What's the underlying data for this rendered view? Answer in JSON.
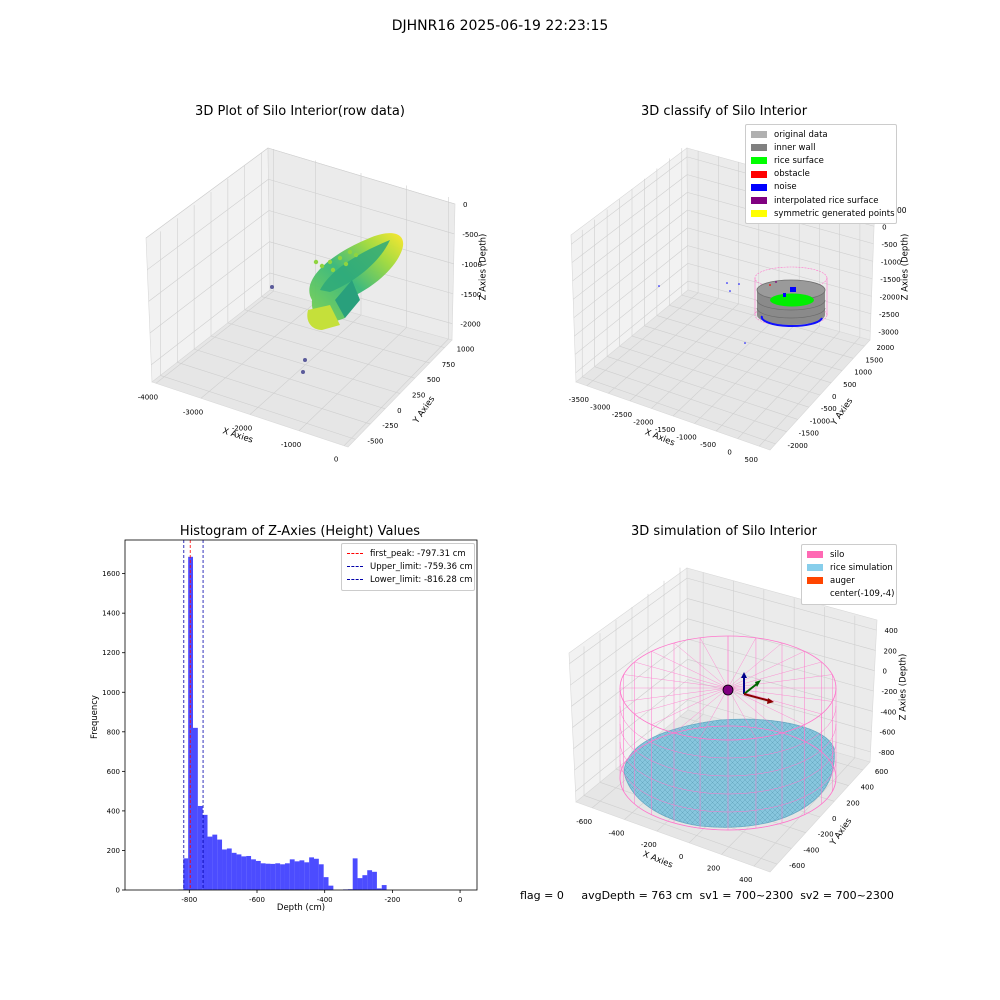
{
  "figure": {
    "title": "DJHNR16 2025-06-19 22:23:15",
    "status_line": "flag = 0     avgDepth = 763 cm  sv1 = 700~2300  sv2 = 700~2300"
  },
  "chart_data": [
    {
      "id": "raw",
      "type": "scatter",
      "title": "3D Plot of Silo Interior(row data)",
      "xlabel": "X Axies",
      "ylabel": "Y Axies",
      "zlabel": "Z Axies (Depth)",
      "x_ticks": [
        "-4000",
        "-3000",
        "-2000",
        "-1000",
        "0"
      ],
      "y_ticks": [
        "-500",
        "-250",
        "0",
        "250",
        "500",
        "750",
        "1000"
      ],
      "z_ticks": [
        "0",
        "-500",
        "-1000",
        "-1500",
        "-2000"
      ],
      "colormap": [
        "#440154",
        "#31688e",
        "#35b779",
        "#fde725"
      ],
      "isolated_points_color": "#5b5b9a"
    },
    {
      "id": "classify",
      "type": "scatter",
      "title": "3D classify of Silo Interior",
      "xlabel": "X Axies",
      "ylabel": "Y Axies",
      "zlabel": "Z Axies (Depth)",
      "x_ticks": [
        "-3500",
        "-3000",
        "-2500",
        "-2000",
        "-1500",
        "-1000",
        "-500",
        "0",
        "500"
      ],
      "y_ticks": [
        "-2000",
        "-1500",
        "-1000",
        "-500",
        "0",
        "500",
        "1000",
        "1500",
        "2000"
      ],
      "z_ticks": [
        "500",
        "0",
        "-500",
        "-1000",
        "-1500",
        "-2000",
        "-2500",
        "-3000"
      ],
      "z_top_tick_partial": "00",
      "legend": [
        {
          "label": "original data",
          "color": "#b0b0b0"
        },
        {
          "label": "inner wall",
          "color": "#808080"
        },
        {
          "label": "rice surface",
          "color": "#00ff00"
        },
        {
          "label": "obstacle",
          "color": "#ff0000"
        },
        {
          "label": "noise",
          "color": "#0000ff"
        },
        {
          "label": "interpolated rice surface",
          "color": "#800080"
        },
        {
          "label": "symmetric generated points",
          "color": "#ffff00"
        }
      ],
      "wire_color": "#ff77cc"
    },
    {
      "id": "histogram",
      "type": "bar",
      "title": "Histogram of Z-Axies (Height) Values",
      "xlabel": "Depth (cm)",
      "ylabel": "Frequency",
      "xlim": [
        -990,
        50
      ],
      "ylim": [
        0,
        1770
      ],
      "x_ticks": [
        -800,
        -600,
        -400,
        -200,
        0
      ],
      "y_ticks": [
        0,
        200,
        400,
        600,
        800,
        1000,
        1200,
        1400,
        1600
      ],
      "bar_color": "#0000ff",
      "bin_width": 14.3,
      "bins": [
        {
          "x": -832,
          "v": 2
        },
        {
          "x": -817.7,
          "v": 160
        },
        {
          "x": -803.4,
          "v": 1685
        },
        {
          "x": -789.1,
          "v": 820
        },
        {
          "x": -774.8,
          "v": 425
        },
        {
          "x": -760.5,
          "v": 380
        },
        {
          "x": -746.2,
          "v": 270
        },
        {
          "x": -731.9,
          "v": 280
        },
        {
          "x": -717.6,
          "v": 255
        },
        {
          "x": -703.3,
          "v": 205
        },
        {
          "x": -689.0,
          "v": 210
        },
        {
          "x": -674.7,
          "v": 188
        },
        {
          "x": -660.4,
          "v": 180
        },
        {
          "x": -646.1,
          "v": 170
        },
        {
          "x": -631.8,
          "v": 172
        },
        {
          "x": -617.5,
          "v": 155
        },
        {
          "x": -603.2,
          "v": 147
        },
        {
          "x": -588.9,
          "v": 135
        },
        {
          "x": -574.6,
          "v": 133
        },
        {
          "x": -560.3,
          "v": 132
        },
        {
          "x": -546.0,
          "v": 135
        },
        {
          "x": -531.7,
          "v": 130
        },
        {
          "x": -517.4,
          "v": 135
        },
        {
          "x": -503.1,
          "v": 155
        },
        {
          "x": -488.8,
          "v": 145
        },
        {
          "x": -474.5,
          "v": 150
        },
        {
          "x": -460.2,
          "v": 140
        },
        {
          "x": -445.9,
          "v": 165
        },
        {
          "x": -431.6,
          "v": 158
        },
        {
          "x": -417.3,
          "v": 130
        },
        {
          "x": -403.0,
          "v": 65
        },
        {
          "x": -388.7,
          "v": 22
        },
        {
          "x": -345.8,
          "v": 3
        },
        {
          "x": -331.5,
          "v": 4
        },
        {
          "x": -317.2,
          "v": 160
        },
        {
          "x": -302.9,
          "v": 60
        },
        {
          "x": -288.6,
          "v": 75
        },
        {
          "x": -274.3,
          "v": 100
        },
        {
          "x": -260.0,
          "v": 92
        },
        {
          "x": -245.7,
          "v": 8
        },
        {
          "x": -231.4,
          "v": 25
        }
      ],
      "ref_lines": [
        {
          "label": "first_peak: -797.31 cm",
          "x": -797.31,
          "color": "#ff0000"
        },
        {
          "label": "Upper_limit: -759.36 cm",
          "x": -759.36,
          "color": "#0000aa"
        },
        {
          "label": "Lower_limit: -816.28 cm",
          "x": -816.28,
          "color": "#0000aa"
        }
      ]
    },
    {
      "id": "simulation",
      "type": "scatter",
      "title": "3D simulation of Silo Interior",
      "xlabel": "X Axies",
      "ylabel": "Y Axies",
      "zlabel": "Z Axies (Depth)",
      "x_ticks": [
        "-600",
        "-400",
        "-200",
        "0",
        "200",
        "400"
      ],
      "y_ticks": [
        "-600",
        "-400",
        "-200",
        "0",
        "200",
        "400",
        "600"
      ],
      "z_ticks": [
        "400",
        "200",
        "0",
        "-200",
        "-400",
        "-600",
        "-800"
      ],
      "legend": [
        {
          "label": "silo",
          "color": "#ff69b4"
        },
        {
          "label": "rice simulation",
          "color": "#87ceeb"
        },
        {
          "label": "auger",
          "color": "#ff4500"
        },
        {
          "label": "center(-109,-4)",
          "color": ""
        }
      ]
    }
  ]
}
